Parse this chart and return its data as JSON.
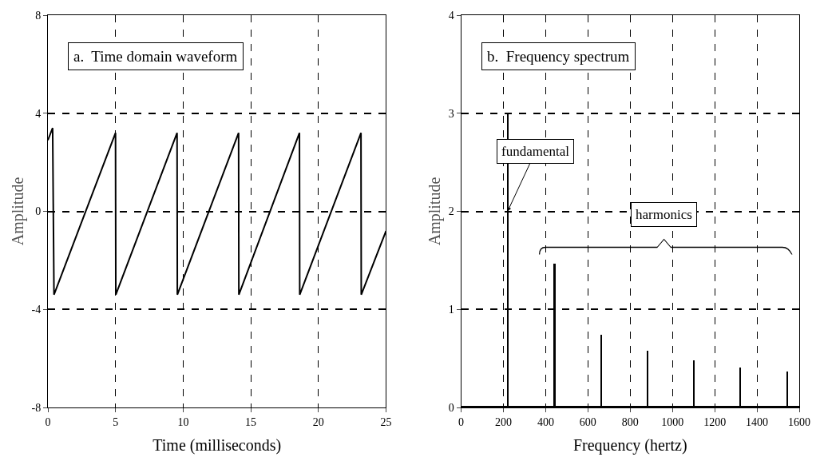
{
  "chart_data": [
    {
      "type": "line",
      "title": "a.  Time domain waveform",
      "xlabel": "Time (milliseconds)",
      "ylabel": "Amplitude",
      "x": [
        0,
        0.35,
        0.45,
        5.0,
        5.02,
        9.55,
        9.57,
        14.1,
        14.12,
        18.6,
        18.62,
        23.15,
        23.17,
        25
      ],
      "values": [
        2.9,
        3.4,
        -3.4,
        3.2,
        -3.4,
        3.2,
        -3.4,
        3.2,
        -3.4,
        3.2,
        -3.4,
        3.2,
        -3.4,
        -0.8
      ],
      "color": "#000000",
      "xlim": [
        0,
        25
      ],
      "xticks": [
        0,
        5,
        10,
        15,
        20,
        25
      ],
      "ylim": [
        -8,
        8
      ],
      "yticks": [
        -8,
        -4,
        0,
        4,
        8
      ],
      "grid": true,
      "line_style": "solid",
      "marker": "none"
    },
    {
      "type": "bar",
      "title": "b.  Frequency spectrum",
      "xlabel": "Frequency (hertz)",
      "ylabel": "Amplitude",
      "x": [
        220,
        440,
        660,
        880,
        1100,
        1320,
        1540
      ],
      "values": [
        3.0,
        1.47,
        0.74,
        0.58,
        0.48,
        0.41,
        0.37
      ],
      "color": "#000000",
      "xlim": [
        0,
        1600
      ],
      "xticks": [
        0,
        200,
        400,
        600,
        800,
        1000,
        1200,
        1400,
        1600
      ],
      "ylim": [
        0,
        4
      ],
      "yticks": [
        0,
        1,
        2,
        3,
        4
      ],
      "grid": true,
      "annotations": [
        {
          "text": "fundamental",
          "x": 220,
          "y": 2
        },
        "harmonics"
      ]
    }
  ]
}
